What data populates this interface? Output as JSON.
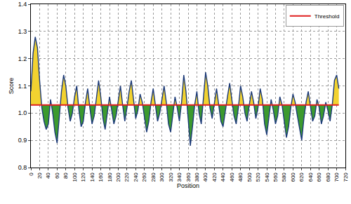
{
  "chart_data": {
    "type": "line",
    "x_label": "Position",
    "y_label": "Score",
    "x": [
      0,
      5,
      10,
      15,
      20,
      25,
      30,
      35,
      40,
      45,
      50,
      55,
      60,
      65,
      70,
      75,
      80,
      85,
      90,
      95,
      100,
      105,
      110,
      115,
      120,
      125,
      130,
      135,
      140,
      145,
      150,
      155,
      160,
      165,
      170,
      175,
      180,
      185,
      190,
      195,
      200,
      205,
      210,
      215,
      220,
      225,
      230,
      235,
      240,
      245,
      250,
      255,
      260,
      265,
      270,
      275,
      280,
      285,
      290,
      295,
      300,
      305,
      310,
      315,
      320,
      325,
      330,
      335,
      340,
      345,
      350,
      355,
      360,
      365,
      370,
      375,
      380,
      385,
      390,
      395,
      400,
      405,
      410,
      415,
      420,
      425,
      430,
      435,
      440,
      445,
      450,
      455,
      460,
      465,
      470,
      475,
      480,
      485,
      490,
      495,
      500,
      505,
      510,
      515,
      520,
      525,
      530,
      535,
      540,
      545,
      550,
      555,
      560,
      565,
      570,
      575,
      580,
      585,
      590,
      595,
      600,
      605,
      610,
      615,
      620,
      625,
      630,
      635,
      640,
      645,
      650,
      655,
      660,
      665,
      670,
      675,
      680,
      685,
      690,
      695,
      700,
      705
    ],
    "series": [
      {
        "color": "#1c3a78",
        "values": [
          1.08,
          1.22,
          1.28,
          1.24,
          1.12,
          1.02,
          0.97,
          0.94,
          0.96,
          1.05,
          1.0,
          0.93,
          0.89,
          0.98,
          1.08,
          1.14,
          1.1,
          1.02,
          0.97,
          1.0,
          1.06,
          1.1,
          1.01,
          0.95,
          0.97,
          1.04,
          1.09,
          1.02,
          0.96,
          0.99,
          1.05,
          1.12,
          1.06,
          0.98,
          0.94,
          1.0,
          1.06,
          1.01,
          0.96,
          0.99,
          1.05,
          1.1,
          1.03,
          0.97,
          1.02,
          1.08,
          1.12,
          1.05,
          0.98,
          1.01,
          1.07,
          1.04,
          0.98,
          0.93,
          0.97,
          1.04,
          1.09,
          1.03,
          0.97,
          1.0,
          1.05,
          1.1,
          1.04,
          0.96,
          0.93,
          0.99,
          1.06,
          1.02,
          0.97,
          1.04,
          1.14,
          1.08,
          0.98,
          0.88,
          0.95,
          1.03,
          1.08,
          1.0,
          0.96,
          1.05,
          1.15,
          1.1,
          1.02,
          0.98,
          1.04,
          1.09,
          1.03,
          0.97,
          0.95,
          1.01,
          1.06,
          1.11,
          1.05,
          0.99,
          0.96,
          1.02,
          1.1,
          1.06,
          1.0,
          0.97,
          1.03,
          1.08,
          1.04,
          0.98,
          1.02,
          1.09,
          1.05,
          0.96,
          0.92,
          0.99,
          1.05,
          1.01,
          0.96,
          0.99,
          1.06,
          1.03,
          0.97,
          0.91,
          0.95,
          1.02,
          1.07,
          1.04,
          0.99,
          0.94,
          0.9,
          0.98,
          1.04,
          1.08,
          1.03,
          0.97,
          0.99,
          1.05,
          1.02,
          0.96,
          0.99,
          1.04,
          1.01,
          0.97,
          1.03,
          1.12,
          1.14,
          1.09
        ]
      }
    ],
    "threshold": {
      "name": "Threshold",
      "value": 1.03,
      "color": "#e01f1f"
    },
    "xlim": [
      0,
      720
    ],
    "xticks": [
      0,
      20,
      40,
      60,
      80,
      100,
      120,
      140,
      160,
      180,
      200,
      220,
      240,
      260,
      280,
      300,
      320,
      340,
      360,
      380,
      400,
      420,
      440,
      460,
      480,
      500,
      520,
      540,
      560,
      580,
      600,
      620,
      640,
      660,
      680,
      700,
      720
    ],
    "ylim": [
      0.8,
      1.4
    ],
    "yticks": [
      0.8,
      0.9,
      {
        "value": 1,
        "label": "1.0"
      },
      1.1,
      1.2,
      1.3,
      1.4
    ],
    "grid": true,
    "legend": "upper right"
  }
}
